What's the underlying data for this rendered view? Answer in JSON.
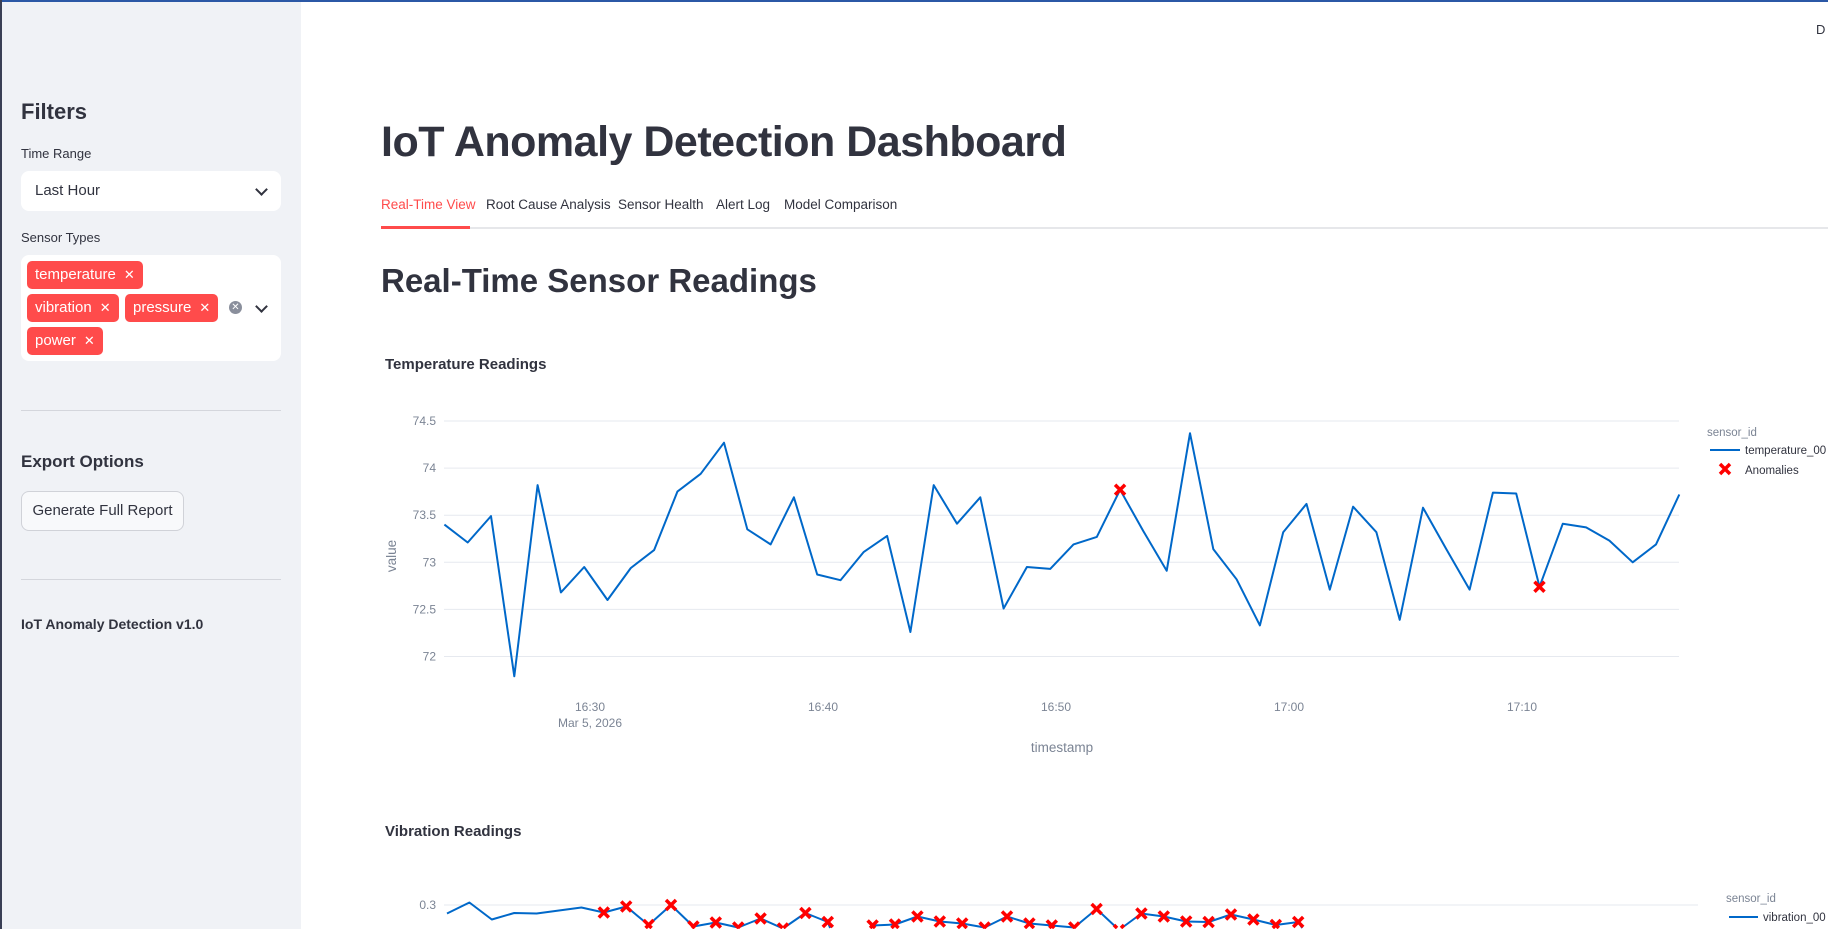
{
  "header": {
    "top_right_text": "D"
  },
  "sidebar": {
    "filters_heading": "Filters",
    "time_range_label": "Time Range",
    "time_range_value": "Last Hour",
    "sensor_types_label": "Sensor Types",
    "sensor_types": [
      "temperature",
      "vibration",
      "pressure",
      "power"
    ],
    "export_heading": "Export Options",
    "generate_report_label": "Generate Full Report",
    "version_text": "IoT Anomaly Detection v1.0"
  },
  "main": {
    "title": "IoT Anomaly Detection Dashboard",
    "tabs": [
      {
        "label": "Real-Time View",
        "active": true
      },
      {
        "label": "Root Cause Analysis",
        "active": false
      },
      {
        "label": "Sensor Health",
        "active": false
      },
      {
        "label": "Alert Log",
        "active": false
      },
      {
        "label": "Model Comparison",
        "active": false
      }
    ],
    "subheader": "Real-Time Sensor Readings"
  },
  "colors": {
    "accent": "#ff4b4b",
    "line": "#0068c9",
    "anomaly": "#ff0000"
  },
  "chart_data": [
    {
      "type": "line",
      "title": "Temperature Readings",
      "xlabel": "timestamp",
      "ylabel": "value",
      "x_tick_labels": [
        "16:30",
        "16:40",
        "16:50",
        "17:00",
        "17:10"
      ],
      "x_date_label": "Mar 5, 2026",
      "y_tick_labels": [
        "72",
        "72.5",
        "73",
        "73.5",
        "74",
        "74.5"
      ],
      "ylim": [
        71.7,
        74.6
      ],
      "grid": true,
      "legend_title": "sensor_id",
      "legend_position": "right",
      "x": [
        "16:23:45",
        "16:24:45",
        "16:25:45",
        "16:26:45",
        "16:27:45",
        "16:28:45",
        "16:29:45",
        "16:30:45",
        "16:31:45",
        "16:32:45",
        "16:33:45",
        "16:34:45",
        "16:35:45",
        "16:36:45",
        "16:37:45",
        "16:38:45",
        "16:39:45",
        "16:40:45",
        "16:41:45",
        "16:42:45",
        "16:43:45",
        "16:44:45",
        "16:45:45",
        "16:46:45",
        "16:47:45",
        "16:48:45",
        "16:49:45",
        "16:50:45",
        "16:51:45",
        "16:52:45",
        "16:53:45",
        "16:54:45",
        "16:55:45",
        "16:56:45",
        "16:57:45",
        "16:58:45",
        "16:59:45",
        "17:00:45",
        "17:01:45",
        "17:02:45",
        "17:03:45",
        "17:04:45",
        "17:05:45",
        "17:06:45",
        "17:07:45",
        "17:08:45",
        "17:09:45",
        "17:10:45",
        "17:11:45",
        "17:12:45",
        "17:13:45",
        "17:14:45",
        "17:15:45",
        "17:16:45"
      ],
      "series": [
        {
          "name": "temperature_00",
          "values": [
            73.4,
            73.21,
            73.49,
            71.79,
            73.82,
            72.68,
            72.95,
            72.6,
            72.94,
            73.13,
            73.75,
            73.94,
            74.27,
            73.35,
            73.19,
            73.69,
            72.87,
            72.81,
            73.11,
            73.28,
            72.26,
            73.82,
            73.41,
            73.69,
            72.51,
            72.95,
            72.93,
            73.19,
            73.27,
            73.77,
            73.33,
            72.91,
            74.37,
            73.14,
            72.82,
            72.33,
            73.32,
            73.62,
            72.71,
            73.59,
            73.32,
            72.39,
            73.58,
            73.14,
            72.71,
            73.74,
            73.73,
            72.74,
            73.41,
            73.37,
            73.23,
            73.0,
            73.19,
            73.72
          ]
        }
      ],
      "anomalies": {
        "name": "Anomalies",
        "points": [
          {
            "x": "16:52:45",
            "y": 73.77
          },
          {
            "x": "17:10:45",
            "y": 72.74
          }
        ]
      }
    },
    {
      "type": "line",
      "title": "Vibration Readings",
      "y_tick_labels": [
        "0.3"
      ],
      "grid": true,
      "legend_title": "sensor_id",
      "legend_position": "right",
      "series": [
        {
          "name": "vibration_00",
          "values": [
            0.283,
            0.305,
            0.271,
            0.284,
            0.283,
            0.289,
            0.295,
            0.285,
            0.297,
            0.26,
            0.3,
            0.257,
            0.265,
            0.255,
            0.273,
            0.253,
            0.284,
            0.266,
            0.15,
            0.259,
            0.261,
            0.277,
            0.267,
            0.263,
            0.255,
            0.277,
            0.263,
            0.259,
            0.255,
            0.292,
            0.25,
            0.283,
            0.277,
            0.267,
            0.266,
            0.281,
            0.271,
            0.26,
            0.266,
            0.2
          ]
        }
      ],
      "anomaly_flags": [
        0,
        0,
        0,
        0,
        0,
        0,
        0,
        1,
        1,
        1,
        1,
        1,
        1,
        1,
        1,
        1,
        1,
        1,
        0,
        1,
        1,
        1,
        1,
        1,
        1,
        1,
        1,
        1,
        1,
        1,
        1,
        1,
        1,
        1,
        1,
        1,
        1,
        1,
        1,
        0
      ]
    }
  ]
}
